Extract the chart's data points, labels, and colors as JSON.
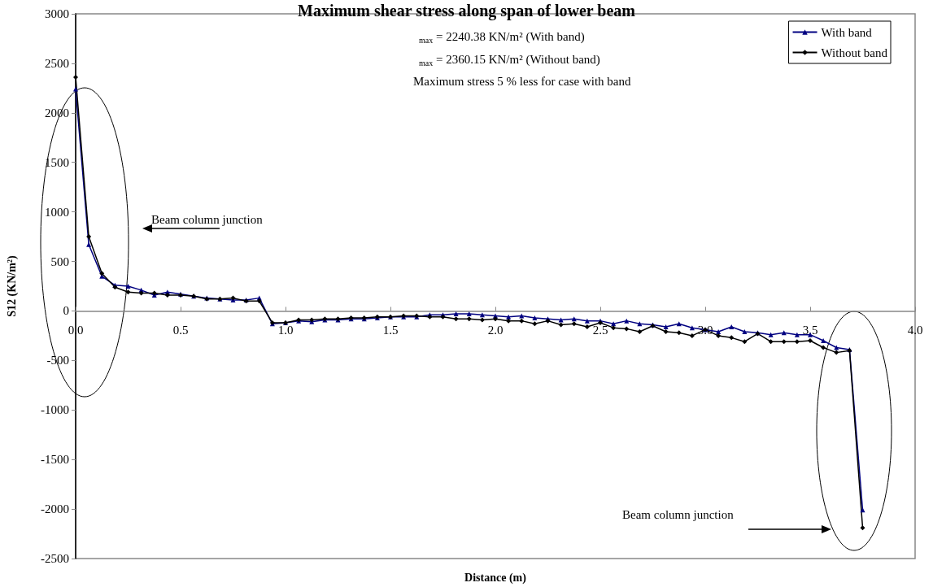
{
  "chart_data": {
    "type": "line",
    "title": "Maximum shear stress along span of lower beam",
    "xlabel": "Distance (m)",
    "ylabel": "S12 (KN/m²)",
    "annotations": [
      "$_{max}$ = 2240.38 KN/m² (With band)",
      "$_{max}$ = 2360.15 KN/m² (Without band)",
      "Maximum stress 5 % less for case with band",
      "Beam column junction",
      "Beam column junction"
    ],
    "x": [
      0,
      0.0625,
      0.125,
      0.1875,
      0.25,
      0.3125,
      0.375,
      0.4375,
      0.5,
      0.5625,
      0.625,
      0.6875,
      0.75,
      0.8125,
      0.875,
      0.9375,
      1,
      1.0625,
      1.125,
      1.1875,
      1.25,
      1.3125,
      1.375,
      1.4375,
      1.5,
      1.5625,
      1.625,
      1.6875,
      1.75,
      1.8125,
      1.875,
      1.9375,
      2,
      2.0625,
      2.125,
      2.1875,
      2.25,
      2.3125,
      2.375,
      2.4375,
      2.5,
      2.5625,
      2.625,
      2.6875,
      2.75,
      2.8125,
      2.875,
      2.9375,
      3,
      3.0625,
      3.125,
      3.1875,
      3.25,
      3.3125,
      3.375,
      3.4375,
      3.5,
      3.5625,
      3.625,
      3.6875,
      3.75
    ],
    "series": [
      {
        "name": "With band",
        "color": "#000080",
        "marker": "triangle",
        "values": [
          2240,
          670,
          350,
          260,
          250,
          210,
          160,
          190,
          170,
          150,
          130,
          120,
          110,
          110,
          130,
          -130,
          -120,
          -100,
          -110,
          -90,
          -90,
          -80,
          -80,
          -70,
          -60,
          -60,
          -60,
          -40,
          -40,
          -30,
          -30,
          -40,
          -50,
          -60,
          -50,
          -70,
          -80,
          -90,
          -80,
          -100,
          -100,
          -130,
          -100,
          -130,
          -140,
          -160,
          -130,
          -170,
          -190,
          -210,
          -160,
          -210,
          -220,
          -240,
          -220,
          -240,
          -240,
          -300,
          -370,
          -390,
          -2010
        ]
      },
      {
        "name": "Without band",
        "color": "#000000",
        "marker": "diamond",
        "values": [
          2360,
          750,
          380,
          240,
          190,
          180,
          180,
          160,
          160,
          150,
          120,
          120,
          130,
          100,
          100,
          -120,
          -120,
          -90,
          -90,
          -80,
          -80,
          -70,
          -70,
          -60,
          -60,
          -50,
          -50,
          -60,
          -60,
          -80,
          -80,
          -90,
          -80,
          -100,
          -100,
          -130,
          -100,
          -140,
          -130,
          -160,
          -120,
          -170,
          -180,
          -210,
          -150,
          -210,
          -220,
          -250,
          -190,
          -250,
          -270,
          -310,
          -230,
          -310,
          -310,
          -310,
          -300,
          -370,
          -420,
          -400,
          -2190
        ]
      }
    ],
    "xlim": [
      0,
      4
    ],
    "xticks": [
      {
        "value": 0,
        "label": "0.0"
      },
      {
        "value": 0.5,
        "label": "0.5"
      },
      {
        "value": 1,
        "label": "1.0"
      },
      {
        "value": 1.5,
        "label": "1.5"
      },
      {
        "value": 2,
        "label": "2.0"
      },
      {
        "value": 2.5,
        "label": "2.5"
      },
      {
        "value": 3,
        "label": "3.0"
      },
      {
        "value": 3.5,
        "label": "3.5"
      },
      {
        "value": 4,
        "label": "4.0"
      }
    ],
    "ylim": [
      -2500,
      3000
    ],
    "yticks": [
      -2500,
      -2000,
      -1500,
      -1000,
      -500,
      0,
      500,
      1000,
      1500,
      2000,
      2500,
      3000
    ],
    "grid": false,
    "legend": "top right",
    "line_style": "solid"
  }
}
